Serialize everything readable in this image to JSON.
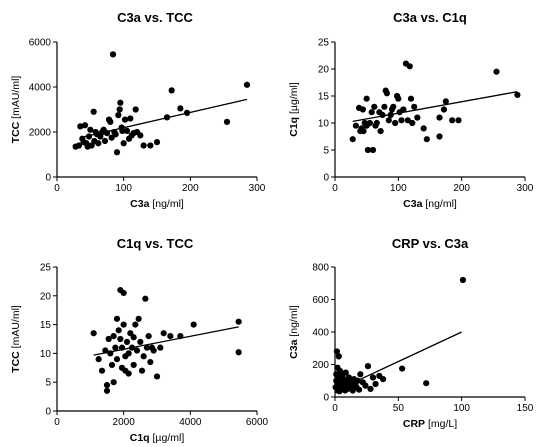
{
  "chart_data": [
    {
      "type": "scatter",
      "title": "C3a vs. TCC",
      "xlabel_bold": "C3a",
      "xlabel_unit": " [ng/ml]",
      "ylabel_bold": "TCC",
      "ylabel_unit": " [mAU/ml]",
      "xlim": [
        0,
        300
      ],
      "xticks": [
        0,
        100,
        200,
        300
      ],
      "ylim": [
        0,
        6000
      ],
      "yticks": [
        0,
        2000,
        4000,
        6000
      ],
      "regression": [
        [
          35,
          1750
        ],
        [
          285,
          3450
        ]
      ],
      "points": [
        [
          28,
          1350
        ],
        [
          33,
          1400
        ],
        [
          35,
          2250
        ],
        [
          38,
          1700
        ],
        [
          40,
          1550
        ],
        [
          42,
          2300
        ],
        [
          44,
          1500
        ],
        [
          46,
          1350
        ],
        [
          48,
          1800
        ],
        [
          50,
          2100
        ],
        [
          52,
          1400
        ],
        [
          55,
          2900
        ],
        [
          56,
          1600
        ],
        [
          58,
          2000
        ],
        [
          60,
          1900
        ],
        [
          62,
          1500
        ],
        [
          65,
          1800
        ],
        [
          68,
          2000
        ],
        [
          70,
          2100
        ],
        [
          72,
          1600
        ],
        [
          75,
          1950
        ],
        [
          78,
          2550
        ],
        [
          80,
          2450
        ],
        [
          82,
          1750
        ],
        [
          84,
          5450
        ],
        [
          86,
          2000
        ],
        [
          88,
          1900
        ],
        [
          90,
          1100
        ],
        [
          92,
          2750
        ],
        [
          94,
          3000
        ],
        [
          95,
          3300
        ],
        [
          97,
          2200
        ],
        [
          98,
          2050
        ],
        [
          100,
          1500
        ],
        [
          102,
          2550
        ],
        [
          105,
          2050
        ],
        [
          108,
          1700
        ],
        [
          110,
          2600
        ],
        [
          112,
          1850
        ],
        [
          115,
          1950
        ],
        [
          118,
          3000
        ],
        [
          120,
          2000
        ],
        [
          125,
          1850
        ],
        [
          130,
          1400
        ],
        [
          140,
          1400
        ],
        [
          150,
          1550
        ],
        [
          165,
          2650
        ],
        [
          172,
          3850
        ],
        [
          185,
          3050
        ],
        [
          195,
          2850
        ],
        [
          255,
          2450
        ],
        [
          285,
          4100
        ]
      ]
    },
    {
      "type": "scatter",
      "title": "C3a vs. C1q",
      "xlabel_bold": "C3a",
      "xlabel_unit": " [ng/ml]",
      "ylabel_bold": "C1q",
      "ylabel_unit": " [µg/ml]",
      "xlim": [
        0,
        300
      ],
      "xticks": [
        0,
        100,
        200,
        300
      ],
      "ylim": [
        0,
        25
      ],
      "yticks": [
        0,
        5,
        10,
        15,
        20,
        25
      ],
      "regression": [
        [
          28,
          10.3
        ],
        [
          288,
          15.8
        ]
      ],
      "points": [
        [
          28,
          7
        ],
        [
          33,
          9.5
        ],
        [
          38,
          12.8
        ],
        [
          40,
          8.5
        ],
        [
          42,
          9
        ],
        [
          44,
          12.5
        ],
        [
          45,
          8.5
        ],
        [
          47,
          10
        ],
        [
          50,
          9.5
        ],
        [
          50,
          14.5
        ],
        [
          52,
          5
        ],
        [
          55,
          10
        ],
        [
          58,
          12
        ],
        [
          60,
          5
        ],
        [
          62,
          13
        ],
        [
          64,
          9.5
        ],
        [
          66,
          10
        ],
        [
          70,
          12
        ],
        [
          72,
          8.5
        ],
        [
          75,
          11.5
        ],
        [
          78,
          13
        ],
        [
          80,
          16
        ],
        [
          82,
          15.5
        ],
        [
          85,
          10.5
        ],
        [
          88,
          11.5
        ],
        [
          90,
          12.5
        ],
        [
          92,
          13
        ],
        [
          95,
          10
        ],
        [
          98,
          15
        ],
        [
          100,
          14.5
        ],
        [
          102,
          12
        ],
        [
          105,
          10.5
        ],
        [
          108,
          12.5
        ],
        [
          112,
          21
        ],
        [
          115,
          10.5
        ],
        [
          118,
          20.5
        ],
        [
          120,
          14.5
        ],
        [
          122,
          10
        ],
        [
          125,
          13
        ],
        [
          130,
          11
        ],
        [
          140,
          9
        ],
        [
          145,
          7
        ],
        [
          165,
          11
        ],
        [
          172,
          12.5
        ],
        [
          175,
          14
        ],
        [
          185,
          10.5
        ],
        [
          195,
          10.5
        ],
        [
          255,
          19.5
        ],
        [
          288,
          15.2
        ],
        [
          165,
          7.5
        ]
      ]
    },
    {
      "type": "scatter",
      "title": "C1q vs. TCC",
      "xlabel_bold": "C1q",
      "xlabel_unit": " [µg/ml]",
      "ylabel_bold": "TCC",
      "ylabel_unit": " [mAU/ml]",
      "xlim": [
        0,
        6000
      ],
      "xticks": [
        0,
        2000,
        4000,
        6000
      ],
      "ylim": [
        0,
        25
      ],
      "yticks": [
        0,
        5,
        10,
        15,
        20,
        25
      ],
      "regression": [
        [
          1100,
          9.7
        ],
        [
          5450,
          14.6
        ]
      ],
      "points": [
        [
          1100,
          13.5
        ],
        [
          1250,
          9
        ],
        [
          1350,
          7
        ],
        [
          1450,
          10.5
        ],
        [
          1500,
          4.5
        ],
        [
          1550,
          12.5
        ],
        [
          1600,
          10
        ],
        [
          1650,
          8
        ],
        [
          1700,
          5
        ],
        [
          1700,
          13
        ],
        [
          1750,
          11
        ],
        [
          1800,
          9
        ],
        [
          1800,
          16
        ],
        [
          1850,
          14
        ],
        [
          1900,
          12.5
        ],
        [
          1900,
          21
        ],
        [
          1950,
          7.5
        ],
        [
          1950,
          11
        ],
        [
          2000,
          20.5
        ],
        [
          2000,
          15
        ],
        [
          2050,
          9.5
        ],
        [
          2100,
          12
        ],
        [
          2150,
          10
        ],
        [
          2150,
          6.5
        ],
        [
          2200,
          13.5
        ],
        [
          2250,
          11
        ],
        [
          2300,
          8
        ],
        [
          2350,
          15
        ],
        [
          2400,
          10.5
        ],
        [
          2450,
          16
        ],
        [
          2500,
          12
        ],
        [
          2550,
          7
        ],
        [
          2600,
          9.5
        ],
        [
          2650,
          19.5
        ],
        [
          2700,
          11
        ],
        [
          2750,
          13
        ],
        [
          2800,
          8.5
        ],
        [
          2850,
          11
        ],
        [
          2900,
          10.5
        ],
        [
          3000,
          6
        ],
        [
          3100,
          11
        ],
        [
          3200,
          13.5
        ],
        [
          3400,
          13
        ],
        [
          3700,
          13
        ],
        [
          4100,
          15
        ],
        [
          5450,
          15.5
        ],
        [
          5450,
          10.2
        ],
        [
          1500,
          3.5
        ],
        [
          2050,
          7
        ],
        [
          2300,
          12.8
        ]
      ]
    },
    {
      "type": "scatter",
      "title": "CRP vs. C3a",
      "xlabel_bold": "CRP",
      "xlabel_unit": " [mg/L]",
      "ylabel_bold": "C3a",
      "ylabel_unit": " [ng/ml]",
      "xlim": [
        0,
        150
      ],
      "xticks": [
        0,
        50,
        100,
        150
      ],
      "ylim": [
        0,
        800
      ],
      "yticks": [
        0,
        200,
        400,
        600,
        800
      ],
      "regression": [
        [
          1,
          40
        ],
        [
          100,
          400
        ]
      ],
      "points": [
        [
          0.5,
          60
        ],
        [
          1,
          100
        ],
        [
          1,
          140
        ],
        [
          1.5,
          280
        ],
        [
          2,
          40
        ],
        [
          2,
          180
        ],
        [
          2.5,
          70
        ],
        [
          3,
          250
        ],
        [
          3,
          120
        ],
        [
          3.5,
          35
        ],
        [
          4,
          90
        ],
        [
          4,
          160
        ],
        [
          5,
          50
        ],
        [
          5.5,
          130
        ],
        [
          6,
          80
        ],
        [
          7,
          60
        ],
        [
          7,
          110
        ],
        [
          8,
          40
        ],
        [
          8.5,
          150
        ],
        [
          9,
          100
        ],
        [
          10,
          70
        ],
        [
          10,
          50
        ],
        [
          11,
          120
        ],
        [
          12,
          90
        ],
        [
          12.5,
          60
        ],
        [
          14,
          40
        ],
        [
          15,
          110
        ],
        [
          16,
          80
        ],
        [
          17,
          60
        ],
        [
          18,
          100
        ],
        [
          19,
          45
        ],
        [
          20,
          140
        ],
        [
          22,
          90
        ],
        [
          24,
          70
        ],
        [
          26,
          190
        ],
        [
          28,
          50
        ],
        [
          30,
          120
        ],
        [
          32,
          80
        ],
        [
          35,
          130
        ],
        [
          38,
          110
        ],
        [
          53,
          175
        ],
        [
          72,
          85
        ],
        [
          101,
          720
        ]
      ]
    }
  ]
}
